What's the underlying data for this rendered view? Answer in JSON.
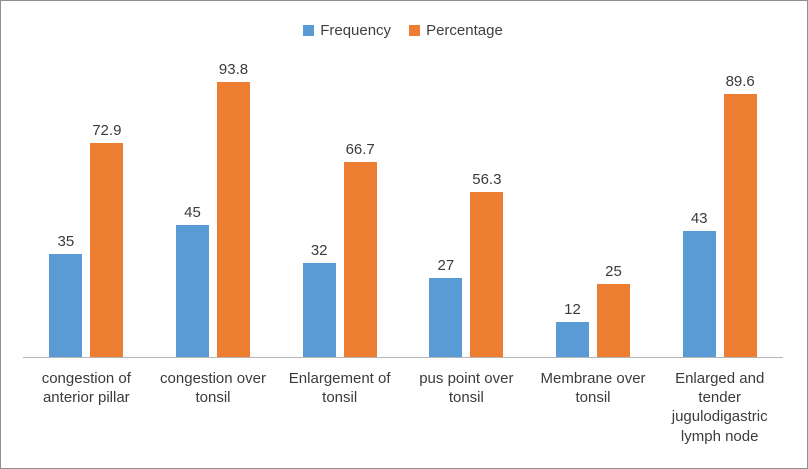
{
  "chart_data": {
    "type": "bar",
    "title": "",
    "xlabel": "",
    "ylabel": "",
    "ylim": [
      0,
      100
    ],
    "grid": false,
    "legend_position": "top",
    "data_labels": true,
    "categories": [
      "congestion of anterior pillar",
      "congestion over tonsil",
      "Enlargement of tonsil",
      "pus point over tonsil",
      "Membrane over tonsil",
      "Enlarged and tender jugulodigastric lymph node"
    ],
    "series": [
      {
        "name": "Frequency",
        "color": "#5B9BD5",
        "values": [
          35,
          45,
          32,
          27,
          12,
          43
        ]
      },
      {
        "name": "Percentage",
        "color": "#ED7D31",
        "values": [
          72.9,
          93.8,
          66.7,
          56.3,
          25,
          89.6
        ]
      }
    ]
  },
  "colors": {
    "frequency_bar": "#5B9BD5",
    "percentage_bar": "#ED7D31",
    "axis_line": "#B5B5B5",
    "text": "#3B3B3B",
    "frame_border": "#8F8F8F",
    "background": "#FFFFFF"
  }
}
